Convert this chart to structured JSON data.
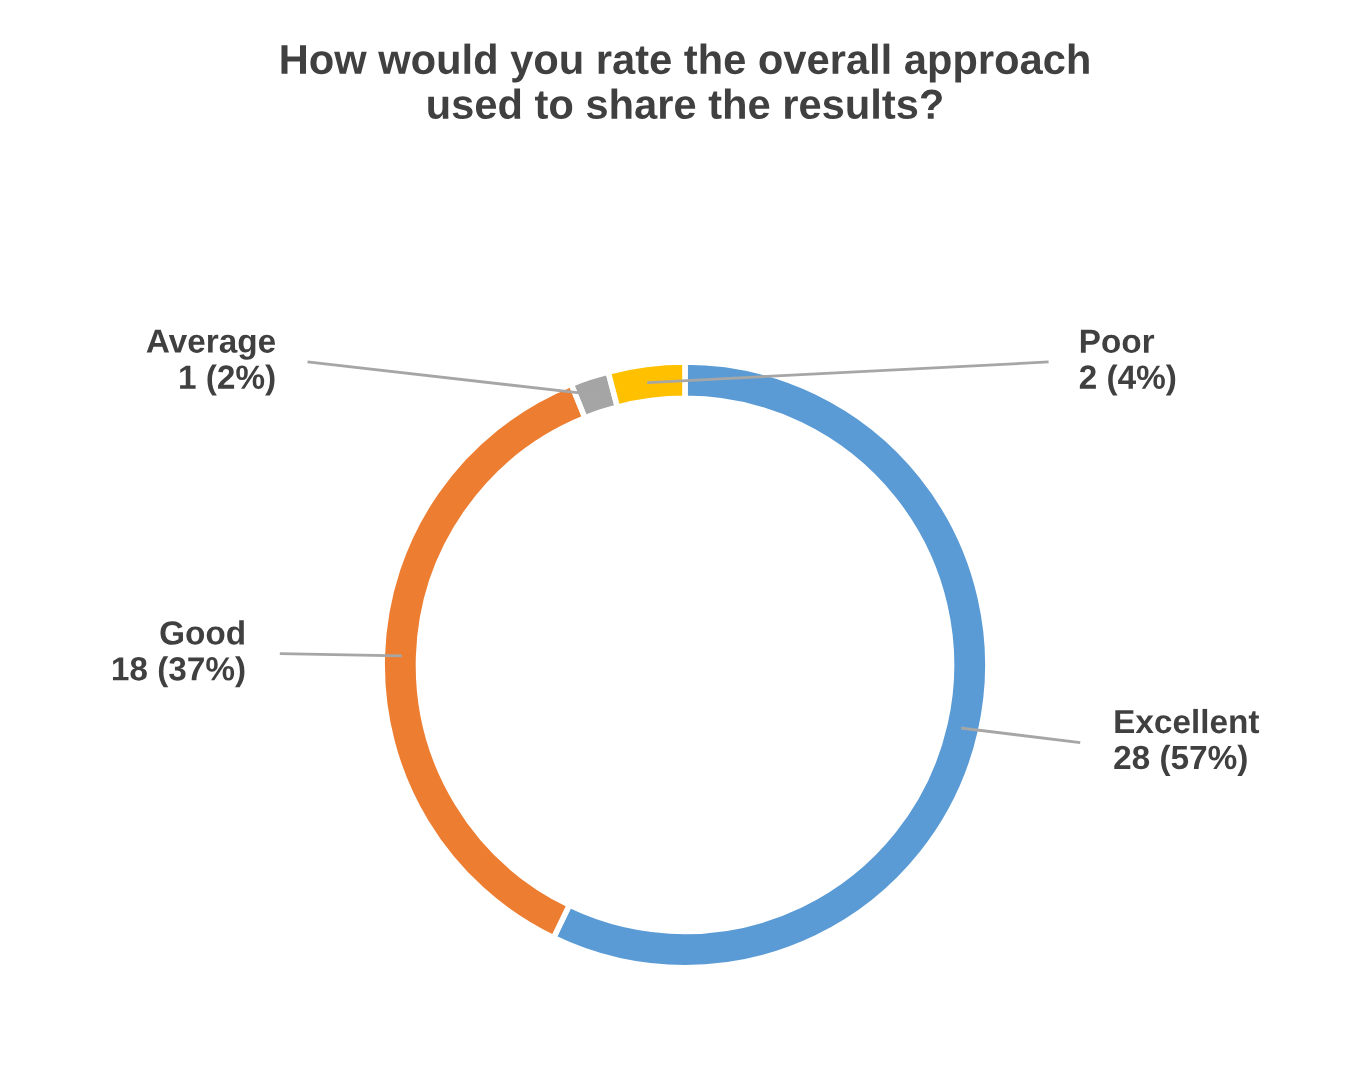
{
  "chart_data": {
    "type": "donut",
    "title": "How would you rate the overall approach\nused to share the results?",
    "categories": [
      "Excellent",
      "Good",
      "Average",
      "Poor"
    ],
    "values": [
      28,
      18,
      1,
      2
    ],
    "colors": [
      "#5b9bd5",
      "#ed7d31",
      "#a5a5a5",
      "#ffc000"
    ],
    "value_labels": [
      "28 (57%)",
      "18 (37%)",
      "1 (2%)",
      "2 (4%)"
    ],
    "legend": false
  }
}
